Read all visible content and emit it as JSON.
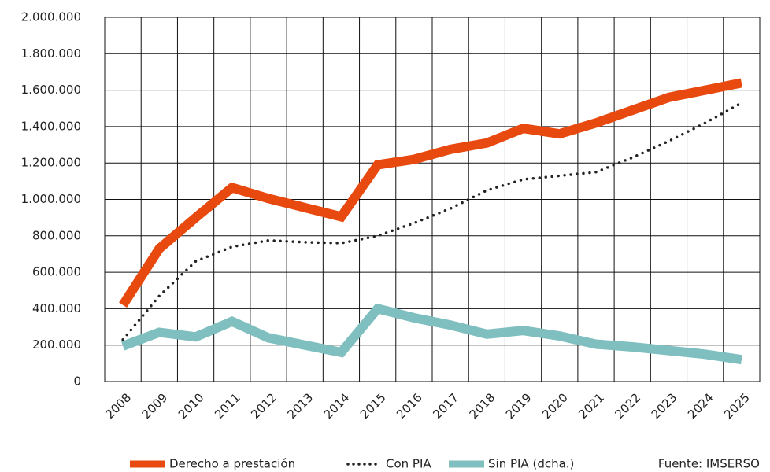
{
  "chart_data": {
    "type": "line",
    "categories": [
      "2008",
      "2009",
      "2010",
      "2011",
      "2012",
      "2013",
      "2014",
      "2015",
      "2016",
      "2017",
      "2018",
      "2019",
      "2020",
      "2021",
      "2022",
      "2023",
      "2024",
      "2025"
    ],
    "series": [
      {
        "name": "Derecho a prestación",
        "color": "#e8490f",
        "style": "solid",
        "values": [
          420000,
          730000,
          900000,
          1065000,
          1005000,
          955000,
          905000,
          1190000,
          1220000,
          1275000,
          1310000,
          1390000,
          1360000,
          1420000,
          1490000,
          1560000,
          1600000,
          1640000
        ]
      },
      {
        "name": "Con PIA",
        "color": "#222222",
        "style": "dotted",
        "values": [
          230000,
          470000,
          660000,
          740000,
          775000,
          765000,
          760000,
          800000,
          870000,
          950000,
          1050000,
          1110000,
          1130000,
          1150000,
          1230000,
          1320000,
          1420000,
          1530000
        ]
      },
      {
        "name": "Sin PIA (dcha.)",
        "color": "#7fbfbf",
        "style": "solid",
        "values": [
          195000,
          270000,
          245000,
          330000,
          240000,
          200000,
          160000,
          400000,
          350000,
          310000,
          260000,
          280000,
          250000,
          205000,
          190000,
          170000,
          150000,
          120000
        ]
      }
    ],
    "ylim": [
      0,
      2000000
    ],
    "yticks": [
      0,
      {
        "value": 200000,
        "label": "200.000"
      },
      {
        "value": 400000,
        "label": "400.000"
      },
      {
        "value": 600000,
        "label": "600.000"
      },
      {
        "value": 800000,
        "label": "800.000"
      },
      {
        "value": 1000000,
        "label": "1.000.000"
      },
      {
        "value": 1200000,
        "label": "1.200.000"
      },
      {
        "value": 1400000,
        "label": "1.400.000"
      },
      {
        "value": 1600000,
        "label": "1.600.000"
      },
      {
        "value": 1800000,
        "label": "1.800.000"
      },
      {
        "value": 2000000,
        "label": "2.000.000"
      }
    ],
    "grid": true,
    "annotation": "Fuente: IMSERSO"
  }
}
